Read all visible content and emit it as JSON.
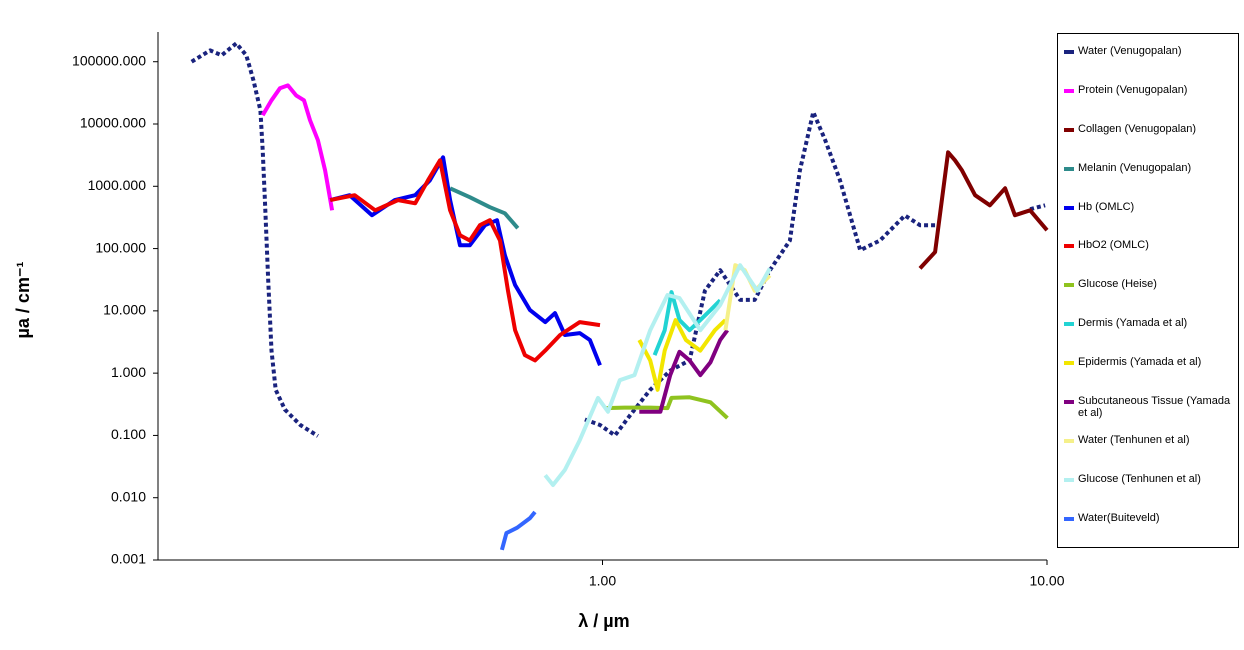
{
  "chart_data": {
    "type": "line",
    "log_x": true,
    "log_y": true,
    "x_label": "λ / µm",
    "y_label": "µa / cm⁻¹",
    "xlim": [
      0.1,
      10
    ],
    "xticks": [
      {
        "value": 1,
        "label": "1.00"
      },
      {
        "value": 10,
        "label": "10.00"
      }
    ],
    "ylim": [
      0.001,
      300000
    ],
    "yticks": [
      0.001,
      {
        "value": 0.01,
        "label": "0.010"
      },
      {
        "value": 0.1,
        "label": "0.100"
      },
      {
        "value": 1,
        "label": "1.000"
      },
      {
        "value": 10,
        "label": "10.000"
      },
      {
        "value": 100,
        "label": "100.000"
      },
      {
        "value": 1000,
        "label": "1000.000"
      },
      {
        "value": 10000,
        "label": "10000.000"
      },
      {
        "value": 100000,
        "label": "100000.000"
      }
    ],
    "legend": "right",
    "series": [
      {
        "name": "Water (Venugopalan)",
        "color": "#1a237e",
        "dashed": true,
        "x": [
          0.119,
          0.131,
          0.139,
          0.15,
          0.158,
          0.164,
          0.17,
          0.172,
          0.174,
          0.177,
          0.18,
          0.184,
          0.193,
          0.209,
          0.229,
          null,
          0.913,
          0.987,
          1.067,
          1.153,
          1.28,
          1.42,
          1.57,
          1.7,
          1.84,
          2.04,
          2.2,
          2.38,
          2.64,
          2.78,
          2.98,
          3.17,
          3.42,
          3.8,
          4.21,
          4.79,
          5.18,
          5.74,
          null,
          9.16,
          9.9
        ],
        "values": [
          100000,
          152000,
          127000,
          197000,
          127000,
          50000,
          16600,
          3800,
          600,
          31,
          2.3,
          0.54,
          0.26,
          0.147,
          0.098,
          null,
          0.18,
          0.147,
          0.1,
          0.21,
          0.54,
          1.1,
          1.6,
          21,
          45,
          15,
          15,
          45,
          135,
          1800,
          15500,
          5500,
          1260,
          94,
          135,
          340,
          237,
          237,
          null,
          428,
          495
        ]
      },
      {
        "name": "Protein (Venugopalan)",
        "color": "#ff00ff",
        "x": [
          0.172,
          0.18,
          0.188,
          0.196,
          0.2045,
          0.213,
          0.2198,
          0.229,
          0.2376,
          0.2464
        ],
        "values": [
          13800,
          24000,
          37400,
          41700,
          28800,
          24000,
          11500,
          5500,
          1800,
          412
        ]
      },
      {
        "name": "Collagen (Venugopalan)",
        "color": "#800000",
        "x": [
          5.18,
          5.6,
          5.99,
          6.21,
          6.44,
          6.89,
          7.44,
          8.05,
          8.47,
          9.16,
          10.0
        ],
        "values": [
          48,
          88,
          3510,
          2610,
          1800,
          718,
          495,
          929,
          343,
          412,
          197
        ]
      },
      {
        "name": "Melanin (Venugopalan)",
        "color": "#2e8b8b",
        "x": [
          0.454,
          0.503,
          0.558,
          0.603,
          0.645
        ],
        "values": [
          929,
          667,
          461,
          369,
          212
        ]
      },
      {
        "name": "Hb (OMLC)",
        "color": "#0000ee",
        "x": [
          0.244,
          0.27,
          0.303,
          0.341,
          0.379,
          0.409,
          0.438,
          0.454,
          0.478,
          0.503,
          0.544,
          0.579,
          0.603,
          0.636,
          0.687,
          0.743,
          0.782,
          0.823,
          0.889,
          0.937,
          0.987
        ],
        "values": [
          600,
          718,
          343,
          600,
          718,
          1250,
          2920,
          600,
          113,
          113,
          237,
          285,
          78,
          26,
          10.3,
          6.6,
          9.2,
          4.1,
          4.4,
          3.4,
          1.34
        ]
      },
      {
        "name": "HbO2 (OMLC)",
        "color": "#ee0000",
        "x": [
          0.244,
          0.277,
          0.308,
          0.347,
          0.379,
          0.405,
          0.431,
          0.454,
          0.478,
          0.503,
          0.53,
          0.558,
          0.588,
          0.613,
          0.636,
          0.669,
          0.705,
          0.743,
          0.803,
          0.889,
          0.987
        ],
        "values": [
          600,
          718,
          412,
          600,
          534,
          1250,
          2610,
          412,
          164,
          135,
          237,
          285,
          135,
          21,
          4.9,
          1.95,
          1.6,
          2.3,
          4.1,
          6.6,
          5.9
        ]
      },
      {
        "name": "Glucose (Heise)",
        "color": "#8fc31f",
        "x": [
          1.013,
          1.12,
          1.28,
          1.4,
          1.43,
          1.57,
          1.75,
          1.91
        ],
        "values": [
          0.275,
          0.28,
          0.28,
          0.275,
          0.4,
          0.41,
          0.34,
          0.19
        ]
      },
      {
        "name": "Dermis (Yamada et al)",
        "color": "#22d3d3",
        "x": [
          1.31,
          1.38,
          1.43,
          1.49,
          1.57,
          1.66,
          1.75,
          1.84
        ],
        "values": [
          1.95,
          4.9,
          20,
          7.1,
          4.9,
          7.1,
          10.3,
          14.8
        ]
      },
      {
        "name": "Epidermis (Yamada et al)",
        "color": "#f2e600",
        "x": [
          1.21,
          1.28,
          1.33,
          1.38,
          1.46,
          1.54,
          1.66,
          1.79,
          1.89
        ],
        "values": [
          3.4,
          1.6,
          0.54,
          2.3,
          7.1,
          3.4,
          2.3,
          4.9,
          7.1
        ]
      },
      {
        "name": "Subcutaneous Tissue (Yamada et al)",
        "color": "#800080",
        "x": [
          1.21,
          1.35,
          1.42,
          1.49,
          1.57,
          1.66,
          1.75,
          1.84,
          1.91
        ],
        "values": [
          0.24,
          0.24,
          0.93,
          2.2,
          1.6,
          0.93,
          1.5,
          3.4,
          4.9
        ]
      },
      {
        "name": "Water (Tenhunen et al)",
        "color": "#f5f08a",
        "x": [
          1.89,
          1.99,
          2.09,
          2.2,
          2.38
        ],
        "values": [
          4.9,
          54,
          45,
          21,
          37
        ]
      },
      {
        "name": "Glucose (Tenhunen et al)",
        "color": "#b3f0f0",
        "x": [
          0.743,
          0.774,
          0.823,
          0.889,
          0.977,
          1.029,
          1.094,
          1.18,
          1.28,
          1.4,
          1.49,
          1.66,
          1.84,
          2.04,
          2.23,
          2.38
        ],
        "values": [
          0.023,
          0.016,
          0.028,
          0.084,
          0.4,
          0.24,
          0.77,
          0.93,
          4.9,
          18,
          16,
          4.9,
          12.4,
          54,
          21,
          48
        ]
      },
      {
        "name": "Water(Buiteveld)",
        "color": "#3366ff",
        "x": [
          0.594,
          0.608,
          0.643,
          0.687,
          0.705
        ],
        "values": [
          0.00145,
          0.0027,
          0.0033,
          0.0047,
          0.0059
        ]
      }
    ]
  }
}
